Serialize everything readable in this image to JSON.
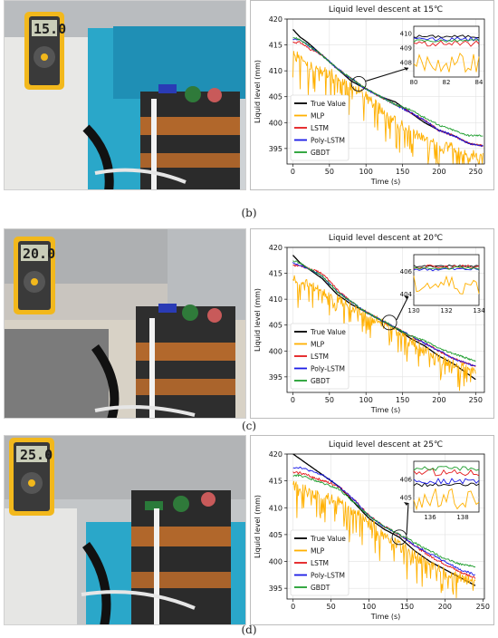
{
  "colors": {
    "true_value": "#000000",
    "mlp": "#FFB000",
    "lstm": "#E31A1C",
    "poly_lstm": "#1A1AE6",
    "gbdt": "#1F9E2F"
  },
  "panels": [
    {
      "caption": "(b)",
      "meter_reading": "15.0",
      "chart_data": {
        "type": "line",
        "title": "Liquid level descent at 15℃",
        "xlabel": "Time (s)",
        "ylabel": "Liquid level (mm)",
        "xlim": [
          -8,
          262
        ],
        "ylim": [
          392,
          420
        ],
        "xticks": [
          "0",
          "50",
          "100",
          "150",
          "200",
          "250"
        ],
        "yticks": [
          "395",
          "400",
          "405",
          "410",
          "415",
          "420"
        ],
        "grid": true,
        "legend": "bottom-left",
        "zoom_anchor": [
          90,
          407.5
        ],
        "series": [
          {
            "name": "True Value",
            "x": [
              0,
              10,
              20,
              40,
              60,
              80,
              100,
              120,
              140,
              160,
              180,
              200,
              220,
              240,
              260
            ],
            "values": [
              418,
              416.5,
              415.5,
              413,
              410.5,
              408,
              406.5,
              405,
              404,
              402,
              400,
              398.5,
              397.5,
              396,
              395.5
            ]
          },
          {
            "name": "MLP",
            "x": [
              0,
              10,
              20,
              40,
              60,
              80,
              100,
              120,
              140,
              160,
              180,
              200,
              220,
              240,
              260
            ],
            "values": [
              413,
              412.5,
              411.5,
              410,
              409,
              407,
              405,
              402.5,
              400.5,
              398.5,
              397,
              395.5,
              395,
              394,
              393.5
            ],
            "noise": 3.5
          },
          {
            "name": "LSTM",
            "x": [
              0,
              10,
              20,
              40,
              60,
              80,
              100,
              120,
              140,
              160,
              180,
              200,
              220,
              240,
              260
            ],
            "values": [
              415.5,
              415.5,
              414.5,
              413,
              410.5,
              408.5,
              406.5,
              405,
              403.5,
              402,
              400.5,
              398.5,
              397.5,
              396,
              395.5
            ],
            "noise": 0.7
          },
          {
            "name": "Poly-LSTM",
            "x": [
              0,
              10,
              20,
              40,
              60,
              80,
              100,
              120,
              140,
              160,
              180,
              200,
              220,
              240,
              260
            ],
            "values": [
              416,
              416,
              415,
              413,
              410.5,
              408.5,
              406.5,
              405,
              403.5,
              402,
              400.5,
              398.5,
              397.5,
              396,
              395.5
            ],
            "noise": 0.7
          },
          {
            "name": "GBDT",
            "x": [
              0,
              10,
              20,
              40,
              60,
              80,
              100,
              120,
              140,
              160,
              180,
              200,
              220,
              240,
              260
            ],
            "values": [
              416.5,
              416,
              415,
              413,
              410.5,
              408.5,
              406.5,
              405,
              403.5,
              402.5,
              401,
              399.5,
              398.5,
              397.5,
              397.5
            ],
            "noise": 0.6
          }
        ],
        "inset": {
          "xlim": [
            80,
            84
          ],
          "ylim": [
            407,
            410.5
          ],
          "xticks": [
            "80",
            "82",
            "84"
          ],
          "yticks": [
            "408",
            "409",
            "410"
          ],
          "series_levels": [
            409.8,
            408.0,
            409.3,
            409.6,
            409.5
          ],
          "noise": [
            0.1,
            0.7,
            0.2,
            0.15,
            0.1
          ]
        }
      }
    },
    {
      "caption": "(c)",
      "meter_reading": "20.0",
      "chart_data": {
        "type": "line",
        "title": "Liquid level descent at 20℃",
        "xlabel": "Time (s)",
        "ylabel": "Liquid level (mm)",
        "xlim": [
          -8,
          262
        ],
        "ylim": [
          392,
          420
        ],
        "xticks": [
          "0",
          "50",
          "100",
          "150",
          "200",
          "250"
        ],
        "yticks": [
          "395",
          "400",
          "405",
          "410",
          "415",
          "420"
        ],
        "grid": true,
        "legend": "bottom-left",
        "zoom_anchor": [
          132,
          405.5
        ],
        "series": [
          {
            "name": "True Value",
            "x": [
              0,
              10,
              20,
              40,
              60,
              80,
              100,
              120,
              140,
              160,
              180,
              200,
              220,
              240,
              250
            ],
            "values": [
              418.5,
              417,
              416,
              414,
              411,
              409,
              407.5,
              406,
              404.5,
              402.5,
              401,
              399,
              397.5,
              395.5,
              394.5
            ]
          },
          {
            "name": "MLP",
            "x": [
              0,
              10,
              20,
              40,
              60,
              80,
              100,
              120,
              140,
              160,
              180,
              200,
              220,
              240,
              250
            ],
            "values": [
              414,
              413.5,
              413,
              411.5,
              410,
              408.5,
              407,
              405.5,
              404,
              402,
              400.5,
              398.5,
              397.5,
              396.5,
              396
            ],
            "noise": 3.0
          },
          {
            "name": "LSTM",
            "x": [
              0,
              10,
              20,
              40,
              60,
              80,
              100,
              120,
              140,
              160,
              180,
              200,
              220,
              240,
              250
            ],
            "values": [
              416.5,
              416.5,
              416,
              415,
              412,
              409.5,
              407.5,
              406,
              404.5,
              403,
              401.5,
              400,
              398.5,
              397.5,
              397
            ],
            "noise": 0.7
          },
          {
            "name": "Poly-LSTM",
            "x": [
              0,
              10,
              20,
              40,
              60,
              80,
              100,
              120,
              140,
              160,
              180,
              200,
              220,
              240,
              250
            ],
            "values": [
              417,
              416.5,
              416,
              414.5,
              411.5,
              409.5,
              407.5,
              406,
              404.5,
              403,
              401.5,
              400,
              398.5,
              397.5,
              397
            ],
            "noise": 0.6
          },
          {
            "name": "GBDT",
            "x": [
              0,
              10,
              20,
              40,
              60,
              80,
              100,
              120,
              140,
              160,
              180,
              200,
              220,
              240,
              250
            ],
            "values": [
              417.5,
              417,
              416,
              414.5,
              411.5,
              409.5,
              407.5,
              406,
              404.5,
              403,
              402,
              400.5,
              399.5,
              398.5,
              398
            ],
            "noise": 0.6
          }
        ],
        "inset": {
          "xlim": [
            130,
            134
          ],
          "ylim": [
            403,
            407.5
          ],
          "xticks": [
            "130",
            "132",
            "134"
          ],
          "yticks": [
            "404",
            "406"
          ],
          "series_levels": [
            406.5,
            404.8,
            406.4,
            406.2,
            406.3
          ],
          "noise": [
            0.1,
            0.9,
            0.2,
            0.15,
            0.12
          ]
        }
      }
    },
    {
      "caption": "(d)",
      "meter_reading": "25.0",
      "chart_data": {
        "type": "line",
        "title": "Liquid level descent at 25℃",
        "xlabel": "Time (s)",
        "ylabel": "Liquid level (mm)",
        "xlim": [
          -8,
          252
        ],
        "ylim": [
          393,
          420
        ],
        "xticks": [
          "0",
          "50",
          "100",
          "150",
          "200",
          "250"
        ],
        "yticks": [
          "395",
          "400",
          "405",
          "410",
          "415",
          "420"
        ],
        "grid": true,
        "legend": "bottom-left",
        "zoom_anchor": [
          140,
          404.5
        ],
        "series": [
          {
            "name": "True Value",
            "x": [
              0,
              10,
              20,
              40,
              60,
              80,
              100,
              120,
              140,
              160,
              180,
              200,
              220,
              240
            ],
            "values": [
              420,
              419,
              418,
              416,
              414,
              411,
              408,
              406,
              404.5,
              402,
              400,
              398.5,
              397,
              395.5
            ]
          },
          {
            "name": "MLP",
            "x": [
              0,
              10,
              20,
              40,
              60,
              80,
              100,
              120,
              140,
              160,
              180,
              200,
              220,
              240
            ],
            "values": [
              414,
              413.5,
              413,
              412,
              411,
              409.5,
              407,
              405,
              403,
              401,
              399.5,
              398,
              397,
              396
            ],
            "noise": 3.5
          },
          {
            "name": "LSTM",
            "x": [
              0,
              10,
              20,
              40,
              60,
              80,
              100,
              120,
              140,
              160,
              180,
              200,
              220,
              240
            ],
            "values": [
              416.5,
              416.5,
              416,
              415,
              414,
              411.5,
              408.5,
              406.5,
              405,
              403,
              401,
              399.5,
              398,
              397
            ],
            "noise": 0.8
          },
          {
            "name": "Poly-LSTM",
            "x": [
              0,
              10,
              20,
              40,
              60,
              80,
              100,
              120,
              140,
              160,
              180,
              200,
              220,
              240
            ],
            "values": [
              417.5,
              417.5,
              417,
              416,
              414,
              411.5,
              408.5,
              406.5,
              405,
              403,
              401.5,
              400,
              398.5,
              397.5
            ],
            "noise": 0.6
          },
          {
            "name": "GBDT",
            "x": [
              0,
              10,
              20,
              40,
              60,
              80,
              100,
              120,
              140,
              160,
              180,
              200,
              220,
              240
            ],
            "values": [
              416,
              416,
              415.5,
              414.5,
              413.5,
              411,
              408.5,
              406.5,
              405,
              403.5,
              402,
              400.5,
              399.5,
              399
            ],
            "noise": 0.6
          }
        ],
        "inset": {
          "xlim": [
            135,
            139
          ],
          "ylim": [
            404.2,
            407
          ],
          "xticks": [
            "136",
            "138"
          ],
          "yticks": [
            "405",
            "406"
          ],
          "series_levels": [
            405.7,
            404.9,
            406.4,
            405.9,
            406.6
          ],
          "noise": [
            0.1,
            0.6,
            0.2,
            0.15,
            0.12
          ]
        }
      }
    }
  ]
}
